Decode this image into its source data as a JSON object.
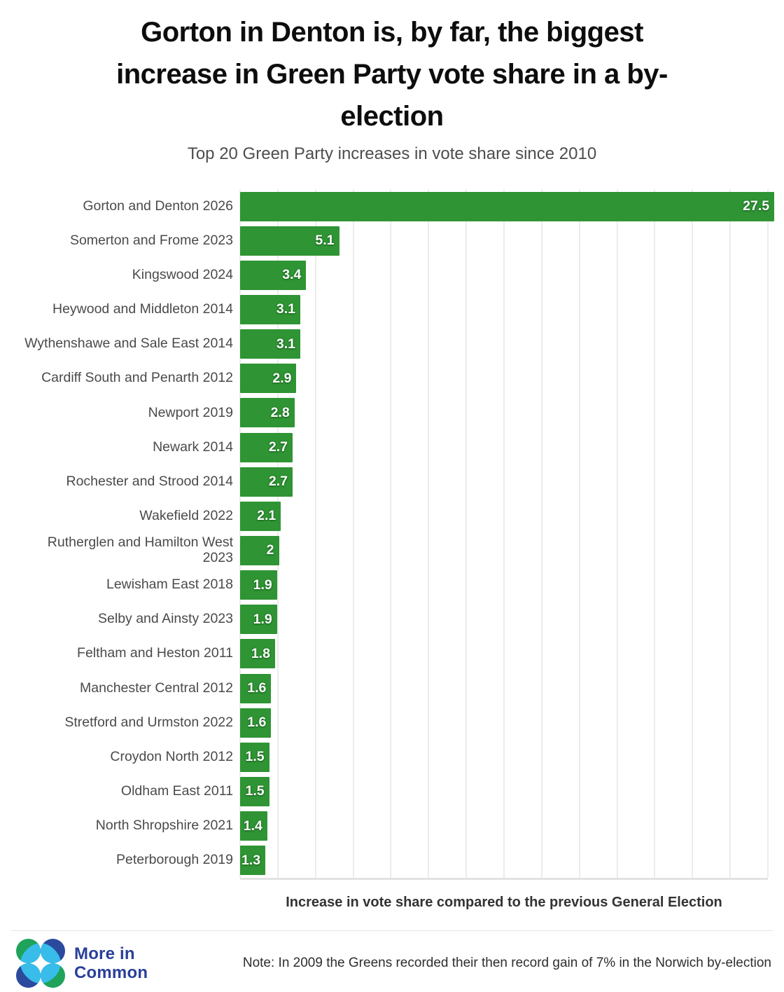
{
  "header": {
    "title": "Gorton in Denton is, by far, the biggest\nincrease in Green Party vote share in a by-\nelection",
    "subtitle": "Top 20 Green Party increases in vote share since 2010"
  },
  "chart_data": {
    "type": "bar",
    "orientation": "horizontal",
    "title": "Gorton in Denton is, by far, the biggest increase in Green Party vote share in a by-election",
    "subtitle": "Top 20 Green Party increases in vote share since 2010",
    "categories": [
      "Gorton and Denton 2026",
      "Somerton and Frome 2023",
      "Kingswood 2024",
      "Heywood and Middleton 2014",
      "Wythenshawe and Sale East 2014",
      "Cardiff South and Penarth 2012",
      "Newport 2019",
      "Newark 2014",
      "Rochester and Strood 2014",
      "Wakefield 2022",
      "Rutherglen and Hamilton West 2023",
      "Lewisham East 2018",
      "Selby and Ainsty 2023",
      "Feltham and Heston 2011",
      "Manchester Central 2012",
      "Stretford and Urmston 2022",
      "Croydon North 2012",
      "Oldham East 2011",
      "North Shropshire 2021",
      "Peterborough 2019"
    ],
    "values": [
      27.5,
      5.1,
      3.4,
      3.1,
      3.1,
      2.9,
      2.8,
      2.7,
      2.7,
      2.1,
      2,
      1.9,
      1.9,
      1.8,
      1.6,
      1.6,
      1.5,
      1.5,
      1.4,
      1.3
    ],
    "xlabel": "Increase in vote share compared to the previous General Election",
    "ylabel": "",
    "xlim": [
      0,
      28
    ],
    "gridline_step": 2,
    "grid": true,
    "legend": false,
    "bar_color": "#2f9434",
    "value_label_color": "#ffffff"
  },
  "footer": {
    "brand": "More in\nCommon",
    "note": "Note: In 2009 the Greens recorded their then record gain of 7% in the Norwich by-election",
    "logo_colors": {
      "green": "#1fa35b",
      "blue": "#2b4a9e",
      "cyan": "#38bdea"
    }
  }
}
